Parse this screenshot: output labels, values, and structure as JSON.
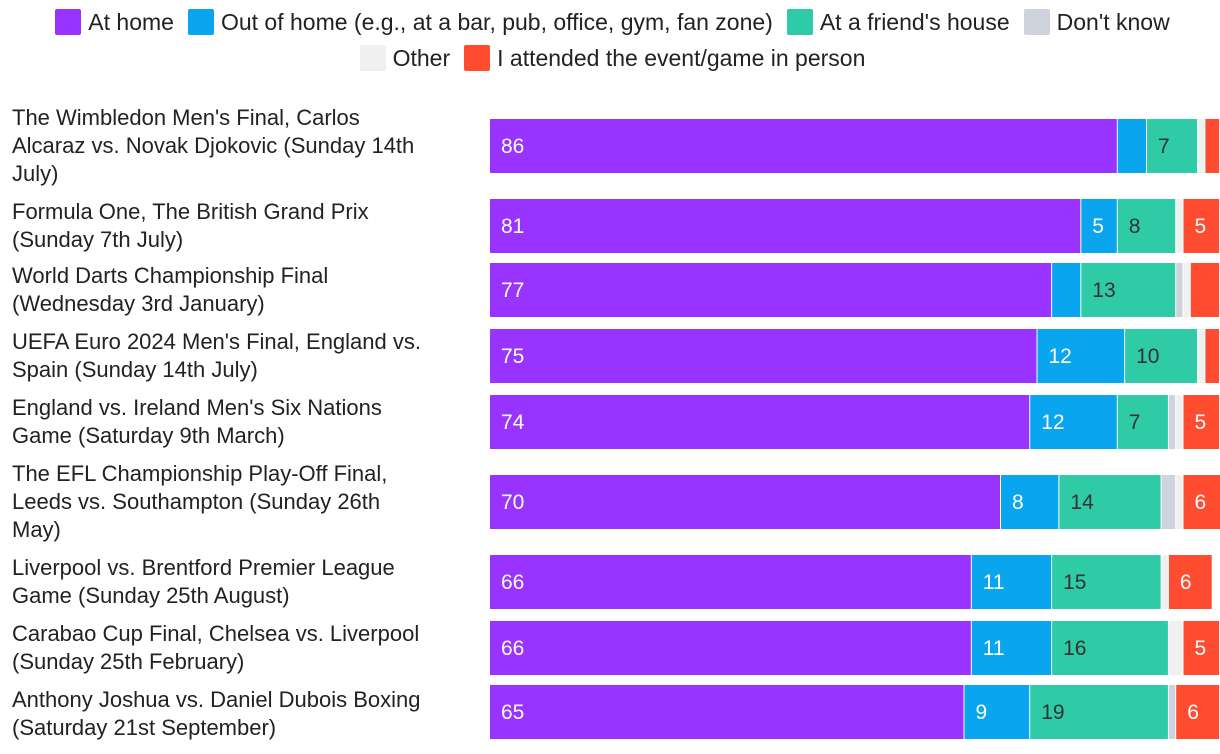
{
  "chart_data": {
    "type": "bar",
    "orientation": "horizontal",
    "stacked": true,
    "xlim": [
      0,
      100
    ],
    "legend_position": "top",
    "series": [
      {
        "name": "At home",
        "color": "#9933ff",
        "label_color": "#ffffff",
        "values": [
          86,
          81,
          77,
          75,
          74,
          70,
          66,
          66,
          65
        ]
      },
      {
        "name": "Out of home (e.g., at a bar, pub, office, gym, fan zone)",
        "color": "#09a6ef",
        "label_color": "#ffffff",
        "values": [
          4,
          5,
          4,
          12,
          12,
          8,
          11,
          11,
          9
        ]
      },
      {
        "name": "At a friend's house",
        "color": "#2fcaa6",
        "label_color": "#333333",
        "values": [
          7,
          8,
          13,
          10,
          7,
          14,
          15,
          16,
          19
        ]
      },
      {
        "name": "Don't know",
        "color": "#cfd3dd",
        "label_color": "#333333",
        "values": [
          0,
          0,
          1,
          0,
          1,
          2,
          0,
          0,
          1
        ]
      },
      {
        "name": "Other",
        "color": "#f0f0f0",
        "label_color": "#333333",
        "values": [
          1,
          1,
          1,
          1,
          1,
          1,
          1,
          2,
          0
        ]
      },
      {
        "name": "I attended the event/game in person",
        "color": "#ff4c30",
        "label_color": "#ffffff",
        "values": [
          2,
          5,
          4,
          2,
          5,
          6,
          6,
          5,
          6
        ]
      }
    ],
    "value_labels": [
      [
        "86",
        "",
        "7",
        "",
        "",
        ""
      ],
      [
        "81",
        "5",
        "8",
        "",
        "",
        "5"
      ],
      [
        "77",
        "",
        "13",
        "",
        "",
        ""
      ],
      [
        "75",
        "12",
        "10",
        "",
        "",
        ""
      ],
      [
        "74",
        "12",
        "7",
        "",
        "",
        "5"
      ],
      [
        "70",
        "8",
        "14",
        "",
        "",
        "6"
      ],
      [
        "66",
        "11",
        "15",
        "",
        "",
        "6"
      ],
      [
        "66",
        "11",
        "16",
        "",
        "",
        "5"
      ],
      [
        "65",
        "9",
        "19",
        "",
        "",
        "6"
      ]
    ],
    "categories": [
      {
        "lines": [
          "The Wimbledon Men's Final, Carlos",
          "Alcaraz vs. Novak Djokovic (Sunday 14th",
          "July)"
        ]
      },
      {
        "lines": [
          "Formula One, The British Grand Prix",
          "(Sunday 7th July)"
        ]
      },
      {
        "lines": [
          "World Darts Championship Final",
          "(Wednesday 3rd January)"
        ]
      },
      {
        "lines": [
          "UEFA Euro 2024 Men's Final, England vs.",
          "Spain (Sunday 14th July)"
        ]
      },
      {
        "lines": [
          "England vs. Ireland Men's Six Nations",
          "Game (Saturday 9th March)"
        ]
      },
      {
        "lines": [
          "The EFL Championship Play-Off Final,",
          "Leeds vs. Southampton (Sunday 26th",
          "May)"
        ]
      },
      {
        "lines": [
          "Liverpool vs. Brentford Premier League",
          "Game (Sunday 25th August)"
        ]
      },
      {
        "lines": [
          "Carabao Cup Final, Chelsea vs. Liverpool",
          "(Sunday 25th February)"
        ]
      },
      {
        "lines": [
          "Anthony Joshua vs. Daniel Dubois Boxing",
          "(Saturday 21st September)"
        ]
      }
    ]
  }
}
